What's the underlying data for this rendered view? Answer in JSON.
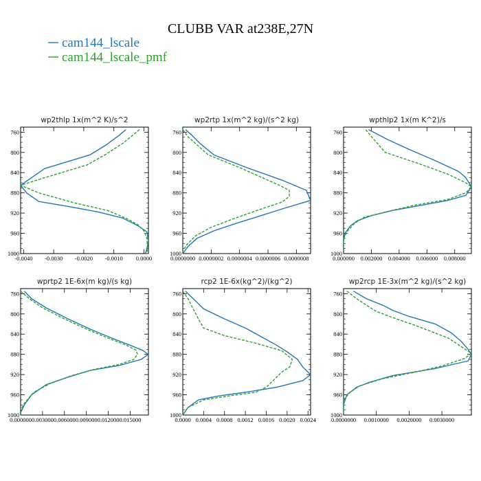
{
  "figure": {
    "title": "CLUBB VAR at238E,27N",
    "legend": [
      {
        "label": "cam144_lscale",
        "color": "#1f77b4"
      },
      {
        "label": "cam144_lscale_pmf",
        "color": "#2ca02c"
      }
    ]
  },
  "chart_data": [
    {
      "type": "line",
      "title": "wp2thlp  1x(m^2 K)/s^2",
      "xlim": [
        -0.0041,
        0.00015
      ],
      "ylim": [
        1000,
        750
      ],
      "xticks": [
        -0.004,
        -0.003,
        -0.002,
        -0.001,
        0.0
      ],
      "xtick_labels": [
        "-0.0040",
        "-0.0030",
        "-0.0020",
        "-0.0010",
        "0.0000"
      ],
      "yticks": [
        760,
        800,
        840,
        880,
        920,
        960,
        1000
      ],
      "series": [
        {
          "name": "cam144_lscale",
          "color": "#1f77b4",
          "dashed": false,
          "points": [
            [
              -0.0006,
              755
            ],
            [
              -0.0008,
              765
            ],
            [
              -0.00125,
              785
            ],
            [
              -0.0018,
              805
            ],
            [
              -0.0033,
              832
            ],
            [
              -0.0041,
              865
            ],
            [
              -0.0039,
              880
            ],
            [
              -0.0035,
              897
            ],
            [
              -0.0025,
              907
            ],
            [
              -0.0015,
              918
            ],
            [
              -0.0007,
              930
            ],
            [
              -0.0002,
              945
            ],
            [
              0.0001,
              957
            ],
            [
              0.00015,
              975
            ],
            [
              0.0001,
              990
            ],
            [
              5e-05,
              1000
            ]
          ]
        },
        {
          "name": "cam144_lscale_pmf",
          "color": "#2ca02c",
          "dashed": true,
          "points": [
            [
              -0.00015,
              755
            ],
            [
              -0.00035,
              765
            ],
            [
              -0.0007,
              782
            ],
            [
              -0.0013,
              805
            ],
            [
              -0.0019,
              825
            ],
            [
              -0.0033,
              850
            ],
            [
              -0.0041,
              865
            ],
            [
              -0.0035,
              880
            ],
            [
              -0.0023,
              900
            ],
            [
              -0.0012,
              915
            ],
            [
              -0.0006,
              930
            ],
            [
              -0.0002,
              943
            ],
            [
              0.0,
              955
            ],
            [
              0.0001,
              970
            ],
            [
              0.00012,
              985
            ],
            [
              0.0001,
              1000
            ]
          ]
        }
      ]
    },
    {
      "type": "line",
      "title": "wp2rtp  1x(m^2 kg)/(s^2 kg)",
      "xlim": [
        0.0,
        9e-07
      ],
      "ylim": [
        1000,
        750
      ],
      "xticks": [
        0.0,
        2e-07,
        4e-07,
        6e-07,
        8e-07
      ],
      "xtick_labels": [
        "0.0000000",
        "0.0000002",
        "0.0000004",
        "0.0000006",
        "0.0000008"
      ],
      "yticks": [
        760,
        800,
        840,
        880,
        920,
        960,
        1000
      ],
      "series": [
        {
          "name": "cam144_lscale",
          "color": "#1f77b4",
          "dashed": false,
          "points": [
            [
              2e-08,
              755
            ],
            [
              6e-08,
              765
            ],
            [
              1.2e-07,
              782
            ],
            [
              2.2e-07,
              805
            ],
            [
              4.5e-07,
              830
            ],
            [
              7e-07,
              855
            ],
            [
              8.7e-07,
              875
            ],
            [
              9e-07,
              895
            ],
            [
              7.2e-07,
              910
            ],
            [
              5.5e-07,
              925
            ],
            [
              3.8e-07,
              940
            ],
            [
              2.2e-07,
              955
            ],
            [
              1e-07,
              970
            ],
            [
              4e-08,
              985
            ],
            [
              0.0,
              1000
            ]
          ]
        },
        {
          "name": "cam144_lscale_pmf",
          "color": "#2ca02c",
          "dashed": true,
          "points": [
            [
              0.0,
              755
            ],
            [
              4e-08,
              770
            ],
            [
              1e-07,
              785
            ],
            [
              1.8e-07,
              805
            ],
            [
              4e-07,
              830
            ],
            [
              6.8e-07,
              865
            ],
            [
              7.5e-07,
              875
            ],
            [
              7.5e-07,
              887
            ],
            [
              7e-07,
              898
            ],
            [
              5.2e-07,
              915
            ],
            [
              3.5e-07,
              932
            ],
            [
              2e-07,
              948
            ],
            [
              9e-08,
              965
            ],
            [
              3e-08,
              982
            ],
            [
              0.0,
              995
            ]
          ]
        }
      ]
    },
    {
      "type": "line",
      "title": "wpthlp2  1x(m K^2)/s",
      "xlim": [
        0.0,
        0.0092
      ],
      "ylim": [
        1000,
        750
      ],
      "xticks": [
        0.0,
        0.002,
        0.004,
        0.006,
        0.008
      ],
      "xtick_labels": [
        "0.000000",
        "0.002000",
        "0.004000",
        "0.006000",
        "0.008000"
      ],
      "yticks": [
        760,
        800,
        840,
        880,
        920,
        960,
        1000
      ],
      "series": [
        {
          "name": "cam144_lscale",
          "color": "#1f77b4",
          "dashed": false,
          "points": [
            [
              0.0018,
              755
            ],
            [
              0.0032,
              775
            ],
            [
              0.0048,
              795
            ],
            [
              0.0065,
              815
            ],
            [
              0.0083,
              838
            ],
            [
              0.0088,
              850
            ],
            [
              0.0092,
              868
            ],
            [
              0.0088,
              885
            ],
            [
              0.0075,
              895
            ],
            [
              0.0055,
              905
            ],
            [
              0.0035,
              915
            ],
            [
              0.002,
              925
            ],
            [
              0.001,
              935
            ],
            [
              0.0005,
              945
            ],
            [
              0.0001,
              960
            ],
            [
              0.0,
              975
            ],
            [
              0.0,
              990
            ]
          ]
        },
        {
          "name": "cam144_lscale_pmf",
          "color": "#2ca02c",
          "dashed": true,
          "points": [
            [
              0.0016,
              755
            ],
            [
              0.0022,
              775
            ],
            [
              0.003,
              800
            ],
            [
              0.0055,
              823
            ],
            [
              0.0075,
              843
            ],
            [
              0.0088,
              860
            ],
            [
              0.0092,
              868
            ],
            [
              0.0088,
              880
            ],
            [
              0.0075,
              893
            ],
            [
              0.005,
              905
            ],
            [
              0.003,
              918
            ],
            [
              0.0015,
              928
            ],
            [
              0.0008,
              940
            ],
            [
              0.0003,
              955
            ],
            [
              0.0,
              970
            ],
            [
              0.0,
              985
            ]
          ]
        }
      ]
    },
    {
      "type": "line",
      "title": "wprtp2  1E-6x(m kg)/(s kg)",
      "xlim": [
        0.0,
        0.0175
      ],
      "ylim": [
        1000,
        750
      ],
      "xticks": [
        0.0,
        0.003,
        0.006,
        0.009,
        0.012,
        0.015
      ],
      "xtick_labels": [
        "0.000000",
        "0.003000",
        "0.006000",
        "0.009000",
        "0.012000",
        "0.015000"
      ],
      "yticks": [
        760,
        800,
        840,
        880,
        920,
        960,
        1000
      ],
      "series": [
        {
          "name": "cam144_lscale",
          "color": "#1f77b4",
          "dashed": false,
          "points": [
            [
              0.0005,
              755
            ],
            [
              0.0015,
              770
            ],
            [
              0.0035,
              788
            ],
            [
              0.0065,
              810
            ],
            [
              0.0095,
              830
            ],
            [
              0.0125,
              848
            ],
            [
              0.015,
              862
            ],
            [
              0.0167,
              872
            ],
            [
              0.0175,
              880
            ],
            [
              0.0165,
              890
            ],
            [
              0.0135,
              902
            ],
            [
              0.0095,
              912
            ],
            [
              0.0065,
              925
            ],
            [
              0.0035,
              940
            ],
            [
              0.0015,
              960
            ],
            [
              0.0005,
              980
            ],
            [
              0.0,
              995
            ]
          ]
        },
        {
          "name": "cam144_lscale_pmf",
          "color": "#2ca02c",
          "dashed": true,
          "points": [
            [
              0.0,
              755
            ],
            [
              0.0012,
              770
            ],
            [
              0.003,
              788
            ],
            [
              0.006,
              810
            ],
            [
              0.009,
              830
            ],
            [
              0.012,
              848
            ],
            [
              0.0145,
              862
            ],
            [
              0.0158,
              872
            ],
            [
              0.016,
              880
            ],
            [
              0.0155,
              890
            ],
            [
              0.0135,
              900
            ],
            [
              0.01,
              910
            ],
            [
              0.007,
              922
            ],
            [
              0.004,
              938
            ],
            [
              0.0018,
              955
            ],
            [
              0.0006,
              975
            ],
            [
              0.0,
              990
            ]
          ]
        }
      ]
    },
    {
      "type": "line",
      "title": "rcp2  1E-6x(kg^2)/(kg^2)",
      "xlim": [
        0.0,
        0.00245
      ],
      "ylim": [
        1000,
        750
      ],
      "xticks": [
        0.0,
        0.0004,
        0.0008,
        0.0012,
        0.0016,
        0.002,
        0.0024
      ],
      "xtick_labels": [
        "0.0000",
        "0.0004",
        "0.0008",
        "0.0012",
        "0.0016",
        "0.0020",
        "0.0024"
      ],
      "yticks": [
        760,
        800,
        840,
        880,
        920,
        960,
        1000
      ],
      "series": [
        {
          "name": "cam144_lscale",
          "color": "#1f77b4",
          "dashed": false,
          "points": [
            [
              5e-05,
              755
            ],
            [
              0.0002,
              770
            ],
            [
              0.0004,
              790
            ],
            [
              0.0008,
              810
            ],
            [
              0.0012,
              828
            ],
            [
              0.0015,
              845
            ],
            [
              0.0018,
              862
            ],
            [
              0.002,
              875
            ],
            [
              0.0022,
              890
            ],
            [
              0.0023,
              905
            ],
            [
              0.00245,
              920
            ],
            [
              0.0023,
              932
            ],
            [
              0.0018,
              945
            ],
            [
              0.0012,
              955
            ],
            [
              0.0007,
              962
            ],
            [
              0.0003,
              970
            ],
            [
              0.0001,
              985
            ],
            [
              0.0,
              1000
            ]
          ]
        },
        {
          "name": "cam144_lscale_pmf",
          "color": "#2ca02c",
          "dashed": true,
          "points": [
            [
              0.0,
              755
            ],
            [
              0.0001,
              770
            ],
            [
              0.0002,
              790
            ],
            [
              0.0003,
              810
            ],
            [
              0.0004,
              828
            ],
            [
              0.0008,
              843
            ],
            [
              0.0014,
              858
            ],
            [
              0.0019,
              873
            ],
            [
              0.0021,
              890
            ],
            [
              0.00205,
              905
            ],
            [
              0.0019,
              915
            ],
            [
              0.0018,
              925
            ],
            [
              0.0016,
              945
            ],
            [
              0.0014,
              955
            ],
            [
              0.0009,
              962
            ],
            [
              0.0004,
              970
            ],
            [
              0.0001,
              985
            ],
            [
              0.0,
              1000
            ]
          ]
        }
      ]
    },
    {
      "type": "line",
      "title": "wp2rcp  1E-3x(m^2 kg)/(s^2 kg)",
      "xlim": [
        0.0,
        0.0039
      ],
      "ylim": [
        1000,
        750
      ],
      "xticks": [
        0.0,
        0.001,
        0.002,
        0.003
      ],
      "xtick_labels": [
        "0.0000000",
        "0.0010000",
        "0.0020000",
        "0.0030000"
      ],
      "yticks": [
        760,
        800,
        840,
        880,
        920,
        960,
        1000
      ],
      "series": [
        {
          "name": "cam144_lscale",
          "color": "#1f77b4",
          "dashed": false,
          "points": [
            [
              0.0003,
              755
            ],
            [
              0.0007,
              770
            ],
            [
              0.0012,
              783
            ],
            [
              0.0015,
              793
            ],
            [
              0.002,
              805
            ],
            [
              0.0028,
              820
            ],
            [
              0.0033,
              838
            ],
            [
              0.0036,
              855
            ],
            [
              0.0038,
              870
            ],
            [
              0.0039,
              880
            ],
            [
              0.0038,
              893
            ],
            [
              0.0028,
              908
            ],
            [
              0.0015,
              922
            ],
            [
              0.0008,
              935
            ],
            [
              0.0004,
              945
            ],
            [
              0.0001,
              960
            ],
            [
              0.0,
              980
            ],
            [
              0.0,
              995
            ]
          ]
        },
        {
          "name": "cam144_lscale_pmf",
          "color": "#2ca02c",
          "dashed": true,
          "points": [
            [
              0.0001,
              755
            ],
            [
              0.0004,
              770
            ],
            [
              0.0007,
              783
            ],
            [
              0.001,
              795
            ],
            [
              0.0014,
              805
            ],
            [
              0.0022,
              823
            ],
            [
              0.0032,
              848
            ],
            [
              0.0039,
              878
            ],
            [
              0.0037,
              888
            ],
            [
              0.003,
              903
            ],
            [
              0.0022,
              915
            ],
            [
              0.0012,
              928
            ],
            [
              0.0005,
              942
            ],
            [
              0.0002,
              955
            ],
            [
              0.0,
              970
            ],
            [
              0.0,
              990
            ]
          ]
        }
      ]
    }
  ]
}
